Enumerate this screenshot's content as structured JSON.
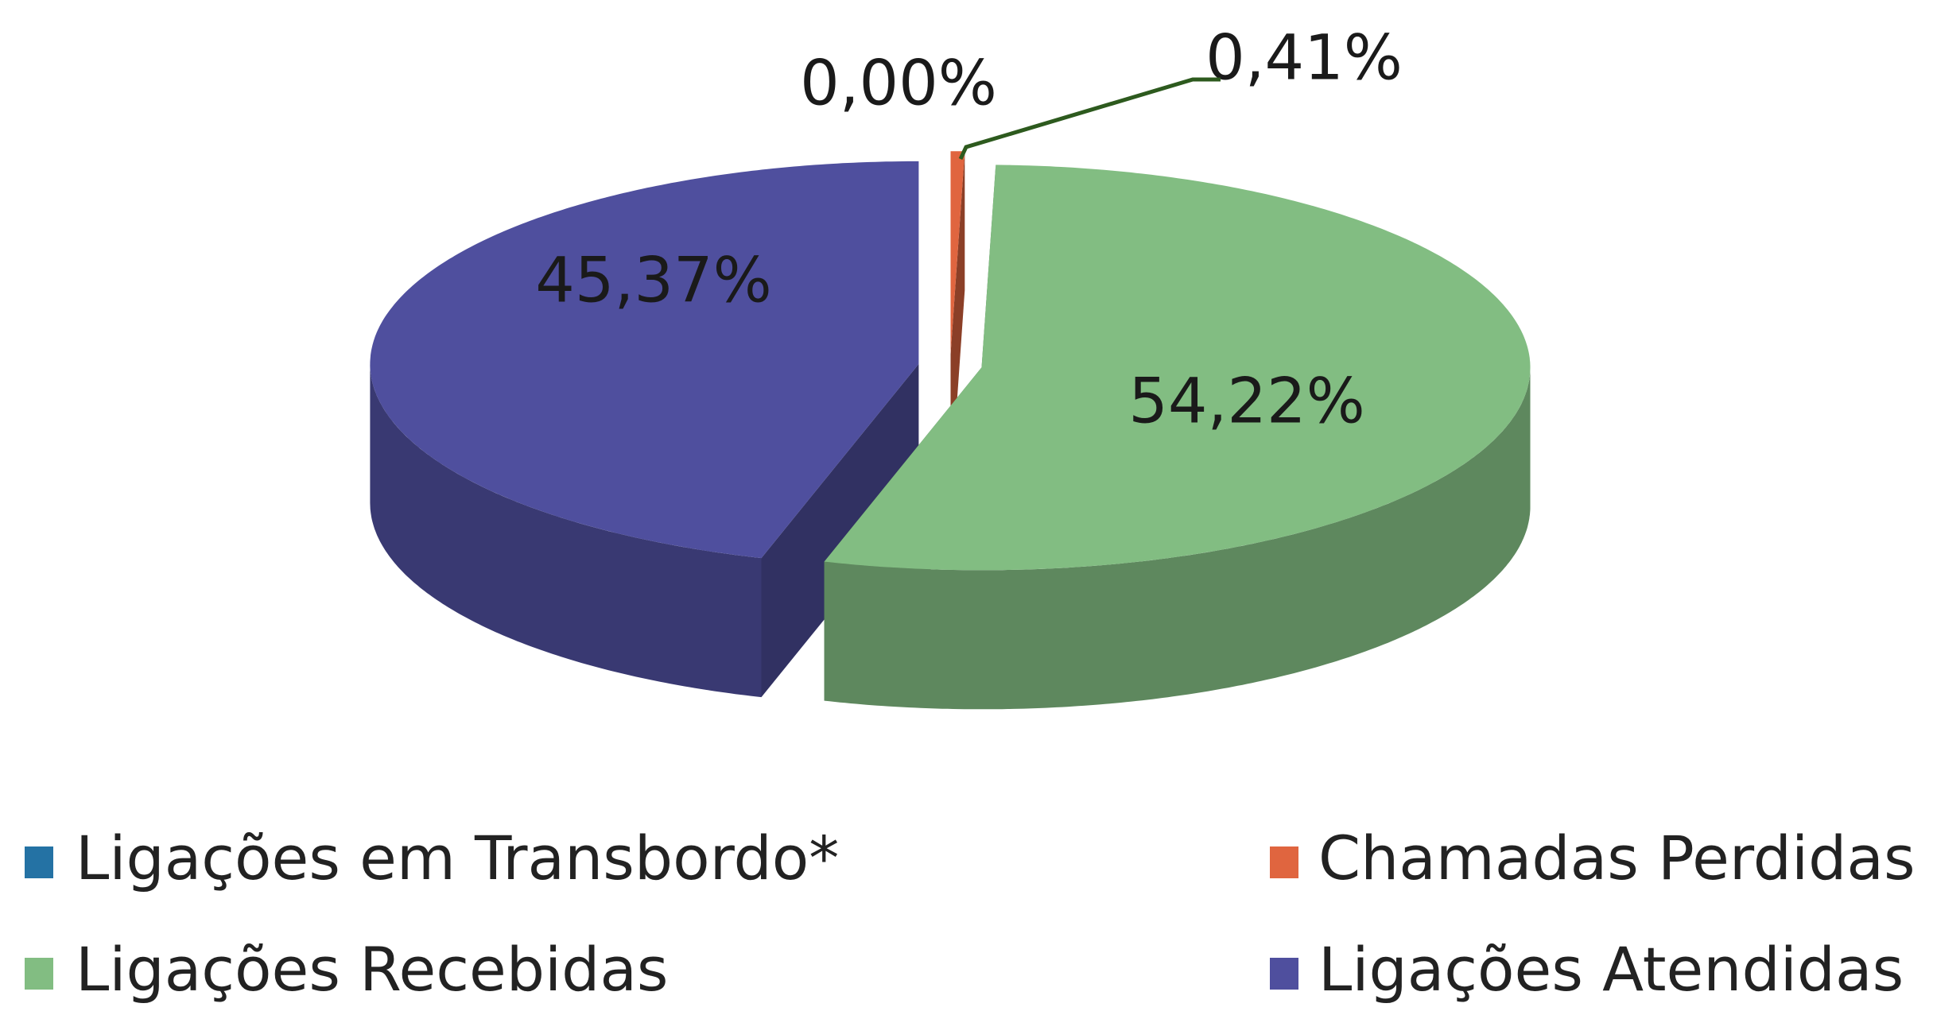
{
  "chart_data": {
    "type": "pie",
    "categories": [
      "Ligações em Transbordo*",
      "Chamadas Perdidas **",
      "Ligações Recebidas",
      "Ligações Atendidas"
    ],
    "values": [
      0,
      0.41,
      54.22,
      45.37
    ],
    "value_labels": [
      "0,00%",
      "0,41%",
      "54,22%",
      "45,37%"
    ],
    "colors": [
      "#2472a4",
      "#e0653f",
      "#82bd82",
      "#4f4f9e"
    ]
  }
}
